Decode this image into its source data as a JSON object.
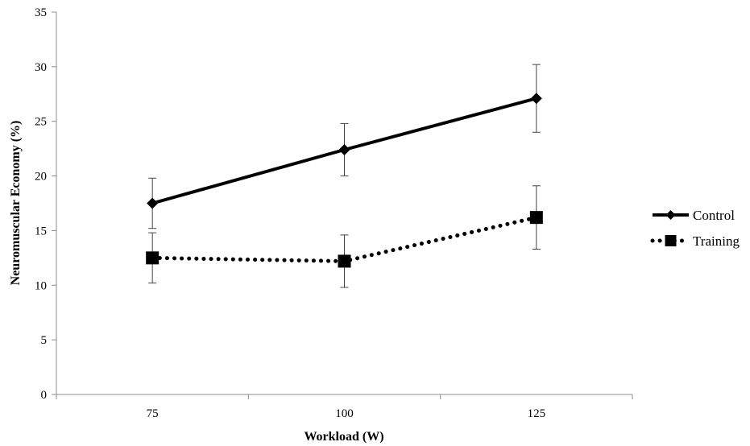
{
  "chart_data": {
    "type": "line",
    "title": "",
    "xlabel": "Workload (W)",
    "ylabel": "Neuromuscular Economy (%)",
    "categories": [
      "75",
      "100",
      "125"
    ],
    "ylim": [
      0,
      35
    ],
    "yticks": [
      "0",
      "5",
      "10",
      "15",
      "20",
      "25",
      "30",
      "35"
    ],
    "grid": false,
    "legend": "right",
    "series": [
      {
        "name": "Control",
        "values": [
          17.5,
          22.4,
          27.1
        ],
        "error": [
          2.3,
          2.4,
          3.1
        ],
        "marker": "diamond",
        "line_style": "solid",
        "color": "#000000"
      },
      {
        "name": "Training",
        "values": [
          12.5,
          12.2,
          16.2
        ],
        "error": [
          2.3,
          2.4,
          2.9
        ],
        "marker": "square",
        "line_style": "dotted",
        "color": "#000000"
      }
    ]
  }
}
